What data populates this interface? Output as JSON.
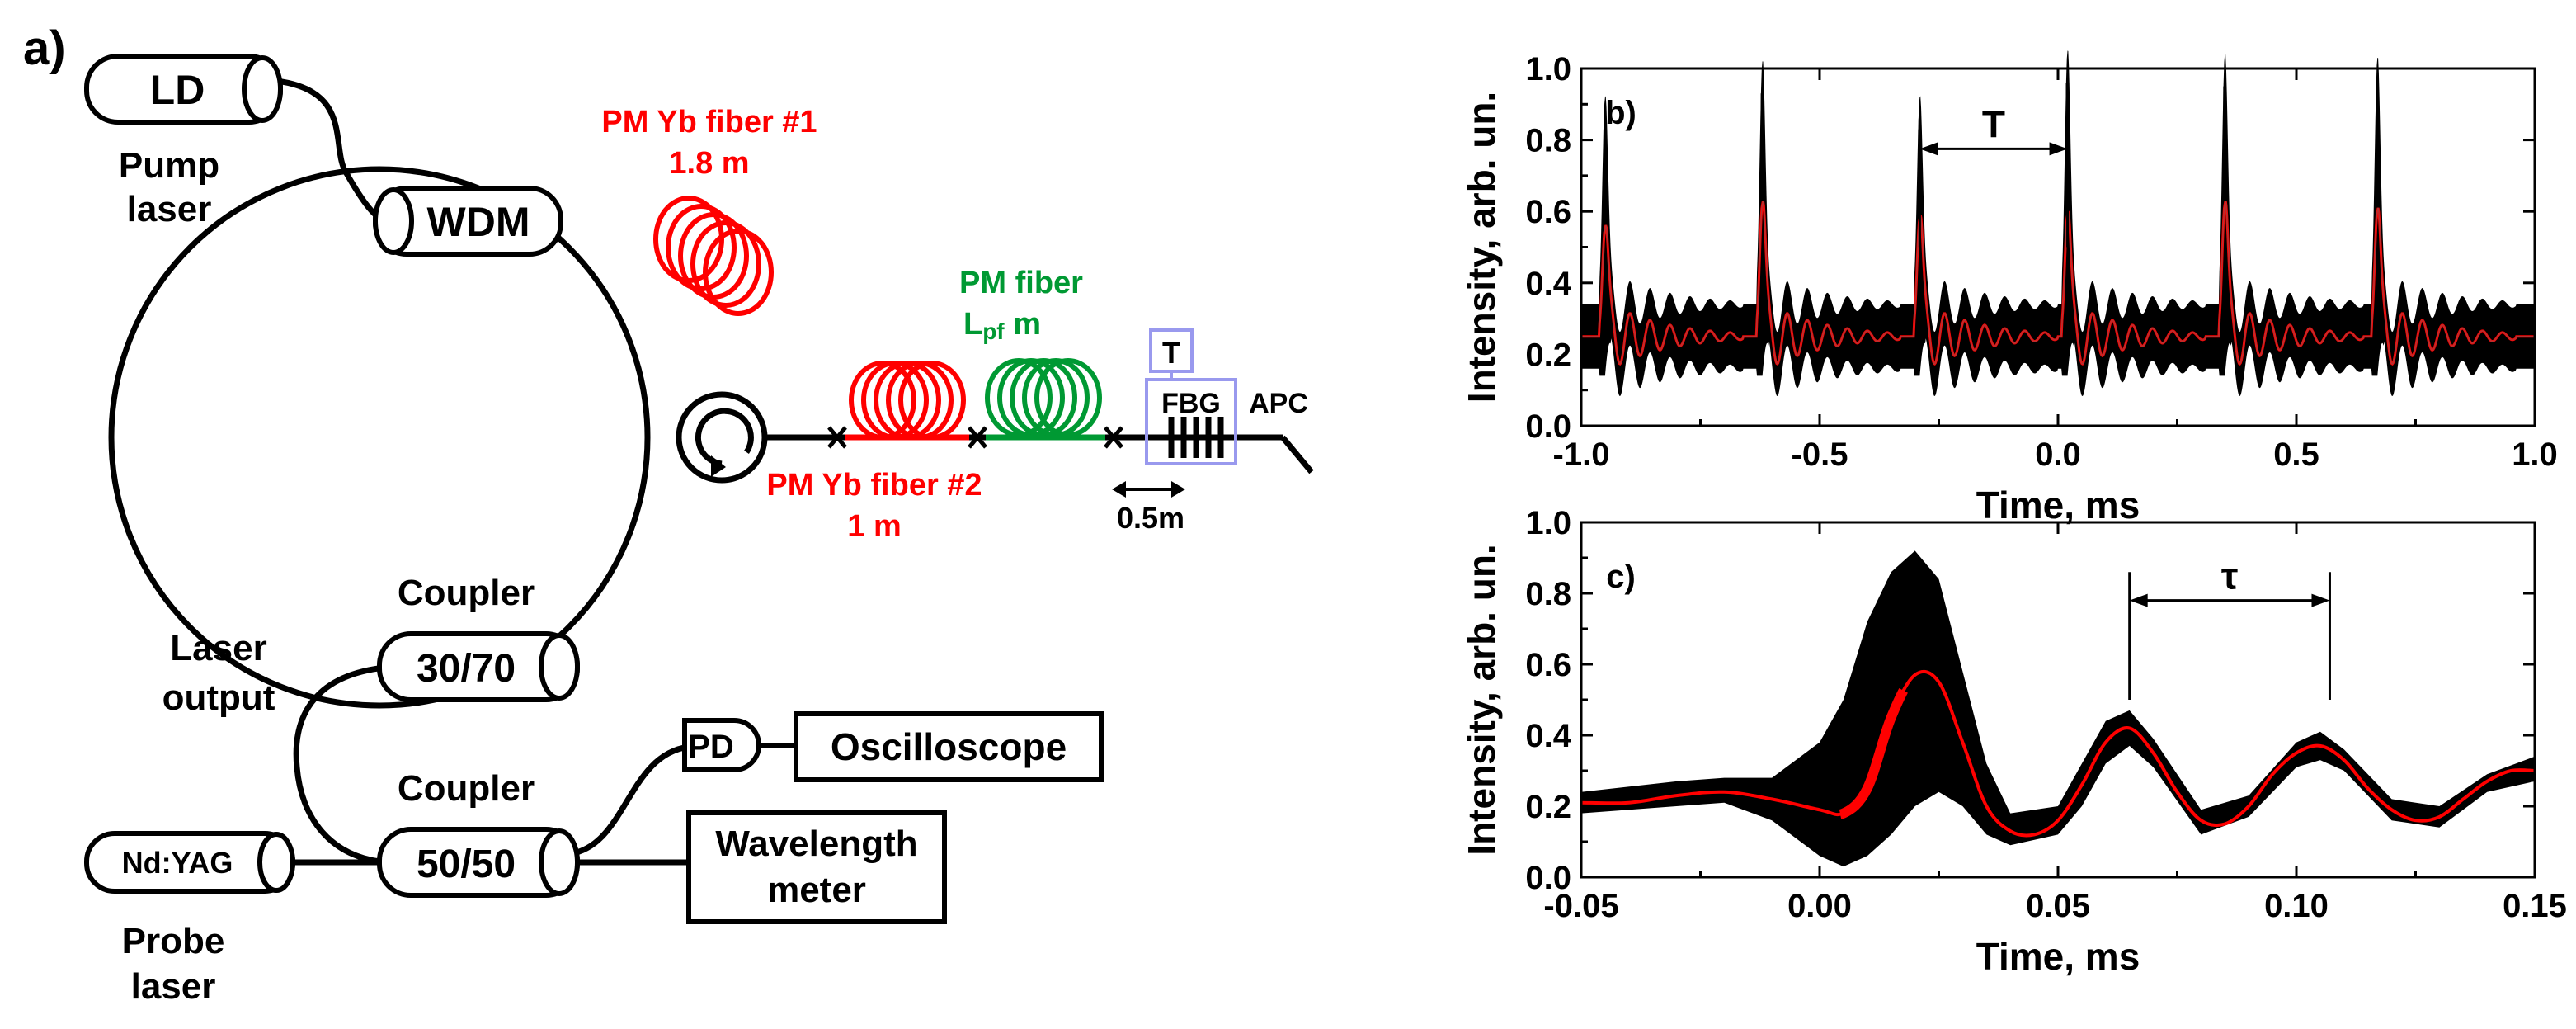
{
  "panel_labels": {
    "a": "a)",
    "b": "b)",
    "c": "c)"
  },
  "diagram": {
    "ld": "LD",
    "pump_line1": "Pump",
    "pump_line2": "laser",
    "wdm": "WDM",
    "yb1_line1": "PM Yb fiber #1",
    "yb1_line2": "1.8 m",
    "pmf_line1": "PM fiber",
    "pmf_L": "L",
    "pmf_sub": "pf",
    "pmf_m": " m",
    "t_box": "T",
    "fbg": "FBG",
    "apc": "APC",
    "yb2_line1": "PM Yb fiber #2",
    "yb2_line2": "1 m",
    "scale": "0.5m",
    "coupler1_title": "Coupler",
    "coupler1_ratio": "30/70",
    "laser_out1": "Laser",
    "laser_out2": "output",
    "coupler2_title": "Coupler",
    "coupler2_ratio": "50/50",
    "pd": "PD",
    "osc": "Oscilloscope",
    "wm1": "Wavelength",
    "wm2": "meter",
    "ndyag": "Nd:YAG",
    "probe1": "Probe",
    "probe2": "laser"
  },
  "colors": {
    "red": "#ff0000",
    "green": "#009933",
    "black": "#000000",
    "box": "#9999ee"
  },
  "chart_data": [
    {
      "type": "line",
      "panel": "b)",
      "xlabel": "Time, ms",
      "ylabel": "Intensity, arb. un.",
      "xlim": [
        -1.0,
        1.0
      ],
      "ylim": [
        0.0,
        1.0
      ],
      "xticks": [
        "-1.0",
        "-0.5",
        "0.0",
        "0.5",
        "1.0"
      ],
      "yticks": [
        "0.0",
        "0.2",
        "0.4",
        "0.6",
        "0.8",
        "1.0"
      ],
      "annotation": "T",
      "annotation_span": [
        -0.29,
        0.02
      ],
      "spike_times": [
        -0.95,
        -0.62,
        -0.29,
        0.02,
        0.35,
        0.67
      ],
      "spike_peaks_raw": [
        0.83,
        0.93,
        0.83,
        0.96,
        0.95,
        0.94
      ],
      "spike_peaks_avg": [
        0.55,
        0.62,
        0.58,
        0.59,
        0.62,
        0.6
      ],
      "baseline": 0.25,
      "series": [
        {
          "role": "raw",
          "color": "#000000"
        },
        {
          "role": "averaged",
          "color": "#ff0000"
        }
      ]
    },
    {
      "type": "line",
      "panel": "c)",
      "xlabel": "Time, ms",
      "ylabel": "Intensity, arb. un.",
      "xlim": [
        -0.05,
        0.15
      ],
      "ylim": [
        0.0,
        1.0
      ],
      "xticks": [
        "-0.05",
        "0.00",
        "0.05",
        "0.10",
        "0.15"
      ],
      "yticks": [
        "0.0",
        "0.2",
        "0.4",
        "0.6",
        "0.8",
        "1.0"
      ],
      "annotation": "τ",
      "annotation_span": [
        0.065,
        0.107
      ],
      "avg_points": [
        [
          -0.05,
          0.21
        ],
        [
          -0.04,
          0.21
        ],
        [
          -0.03,
          0.23
        ],
        [
          -0.02,
          0.24
        ],
        [
          -0.01,
          0.22
        ],
        [
          0.0,
          0.19
        ],
        [
          0.005,
          0.18
        ],
        [
          0.01,
          0.25
        ],
        [
          0.015,
          0.45
        ],
        [
          0.02,
          0.57
        ],
        [
          0.025,
          0.55
        ],
        [
          0.03,
          0.38
        ],
        [
          0.035,
          0.2
        ],
        [
          0.04,
          0.13
        ],
        [
          0.045,
          0.12
        ],
        [
          0.05,
          0.16
        ],
        [
          0.055,
          0.26
        ],
        [
          0.06,
          0.38
        ],
        [
          0.065,
          0.42
        ],
        [
          0.07,
          0.35
        ],
        [
          0.075,
          0.24
        ],
        [
          0.08,
          0.16
        ],
        [
          0.085,
          0.15
        ],
        [
          0.09,
          0.2
        ],
        [
          0.095,
          0.29
        ],
        [
          0.1,
          0.35
        ],
        [
          0.105,
          0.37
        ],
        [
          0.11,
          0.33
        ],
        [
          0.115,
          0.25
        ],
        [
          0.12,
          0.19
        ],
        [
          0.125,
          0.16
        ],
        [
          0.13,
          0.17
        ],
        [
          0.135,
          0.22
        ],
        [
          0.14,
          0.27
        ],
        [
          0.145,
          0.3
        ],
        [
          0.15,
          0.3
        ]
      ],
      "raw_upper": [
        [
          -0.05,
          0.24
        ],
        [
          -0.03,
          0.27
        ],
        [
          -0.02,
          0.28
        ],
        [
          -0.01,
          0.28
        ],
        [
          0.0,
          0.38
        ],
        [
          0.005,
          0.5
        ],
        [
          0.01,
          0.72
        ],
        [
          0.015,
          0.86
        ],
        [
          0.02,
          0.92
        ],
        [
          0.025,
          0.84
        ],
        [
          0.03,
          0.58
        ],
        [
          0.035,
          0.32
        ],
        [
          0.04,
          0.18
        ],
        [
          0.05,
          0.2
        ],
        [
          0.055,
          0.32
        ],
        [
          0.06,
          0.44
        ],
        [
          0.065,
          0.47
        ],
        [
          0.07,
          0.39
        ],
        [
          0.08,
          0.19
        ],
        [
          0.09,
          0.23
        ],
        [
          0.1,
          0.38
        ],
        [
          0.105,
          0.41
        ],
        [
          0.11,
          0.36
        ],
        [
          0.12,
          0.22
        ],
        [
          0.13,
          0.2
        ],
        [
          0.14,
          0.29
        ],
        [
          0.15,
          0.34
        ]
      ],
      "raw_lower": [
        [
          -0.05,
          0.18
        ],
        [
          -0.03,
          0.2
        ],
        [
          -0.02,
          0.21
        ],
        [
          -0.01,
          0.16
        ],
        [
          0.0,
          0.06
        ],
        [
          0.005,
          0.03
        ],
        [
          0.01,
          0.06
        ],
        [
          0.015,
          0.12
        ],
        [
          0.02,
          0.2
        ],
        [
          0.025,
          0.24
        ],
        [
          0.03,
          0.2
        ],
        [
          0.035,
          0.12
        ],
        [
          0.04,
          0.09
        ],
        [
          0.05,
          0.12
        ],
        [
          0.055,
          0.2
        ],
        [
          0.06,
          0.32
        ],
        [
          0.065,
          0.37
        ],
        [
          0.07,
          0.31
        ],
        [
          0.08,
          0.12
        ],
        [
          0.09,
          0.17
        ],
        [
          0.1,
          0.31
        ],
        [
          0.105,
          0.33
        ],
        [
          0.11,
          0.3
        ],
        [
          0.12,
          0.16
        ],
        [
          0.13,
          0.14
        ],
        [
          0.14,
          0.24
        ],
        [
          0.15,
          0.27
        ]
      ],
      "series": [
        {
          "role": "raw",
          "color": "#000000"
        },
        {
          "role": "averaged",
          "color": "#ff0000"
        }
      ]
    }
  ]
}
